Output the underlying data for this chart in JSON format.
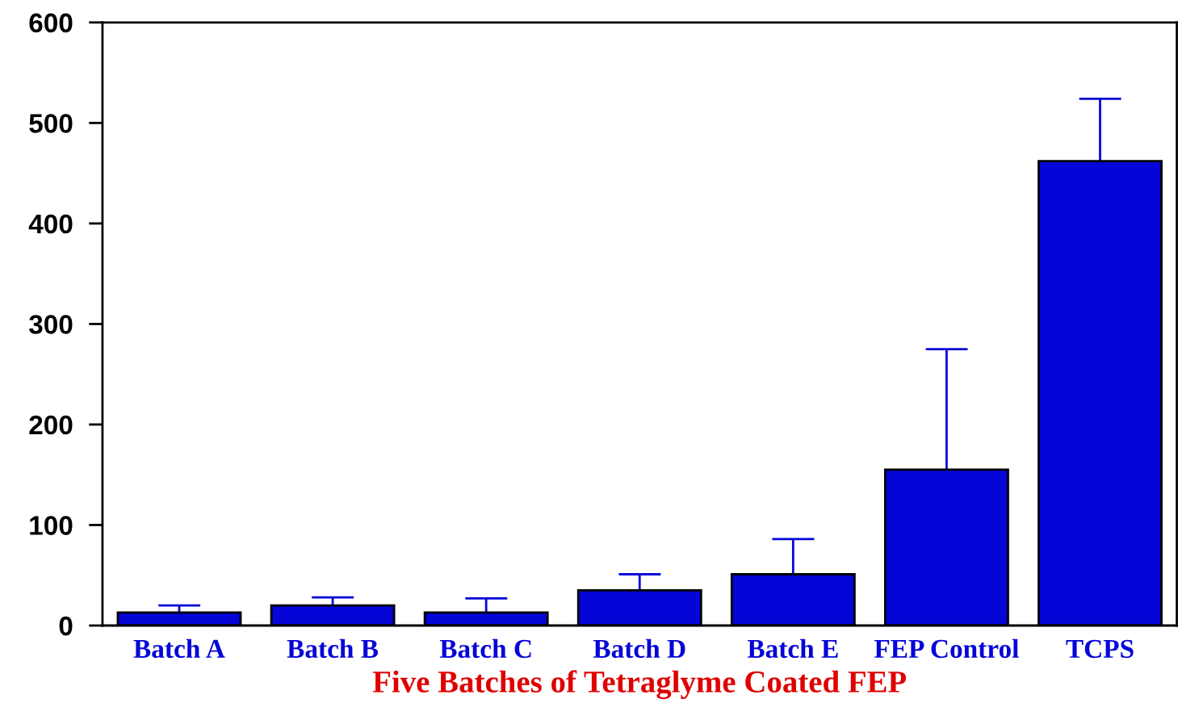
{
  "chart_data": {
    "type": "bar",
    "xlabel": "Five Batches of Tetraglyme Coated FEP",
    "categories": [
      "Batch A",
      "Batch B",
      "Batch C",
      "Batch D",
      "Batch E",
      "FEP Control",
      "TCPS"
    ],
    "values": [
      13,
      20,
      13,
      35,
      51,
      155,
      462
    ],
    "errors": [
      [
        13,
        20
      ],
      [
        20,
        28
      ],
      [
        13,
        27
      ],
      [
        35,
        51
      ],
      [
        51,
        86
      ],
      [
        155,
        275
      ],
      [
        462,
        524
      ]
    ],
    "color": "#0505d8",
    "ylim": [
      0,
      600
    ],
    "yticks": [
      0,
      100,
      200,
      300,
      400,
      500,
      600
    ],
    "grid": false,
    "legend": false
  }
}
